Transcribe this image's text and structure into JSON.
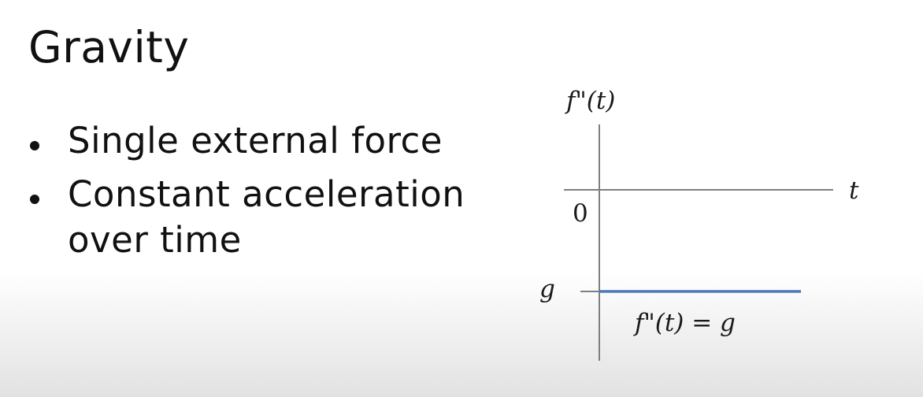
{
  "slide": {
    "title": "Gravity",
    "bullets": [
      "Single external force",
      "Constant acceleration over time"
    ]
  },
  "graph": {
    "y_axis_label": "f\"(t)",
    "x_axis_label": "t",
    "origin_label": "0",
    "level_label": "g",
    "curve_label": "f\"(t) = g",
    "line_color": "#4a7ab8",
    "axis_color": "#7f7f7f"
  }
}
